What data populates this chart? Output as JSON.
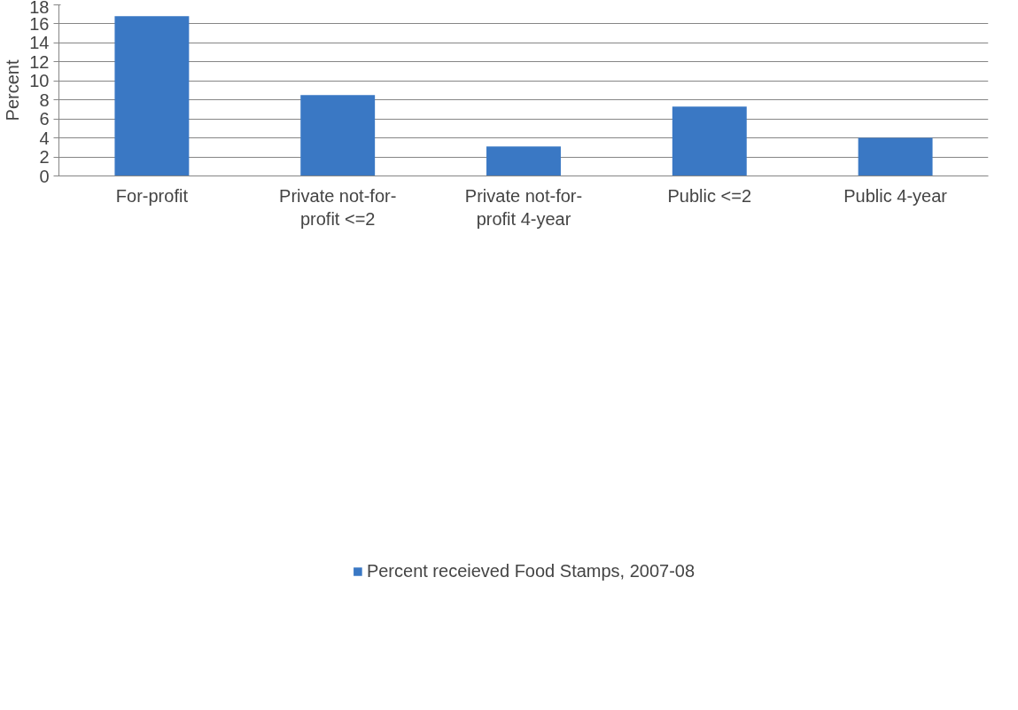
{
  "chart_data": {
    "type": "bar",
    "ylabel": "Percent",
    "categories": [
      "For-profit",
      "Private not-for-profit <=2",
      "Private not-for-profit 4-year",
      "Public <=2",
      "Public 4-year"
    ],
    "series": [
      {
        "name": "Percent receieved Food Stamps, 2007-08",
        "color": "#3a78c4",
        "values": [
          16.8,
          8.5,
          3.1,
          7.3,
          4.0
        ]
      }
    ],
    "ylim": [
      0,
      18
    ],
    "yticks": [
      0,
      2,
      4,
      6,
      8,
      10,
      12,
      14,
      16,
      18
    ],
    "grid": "y",
    "legend": "bottom"
  }
}
